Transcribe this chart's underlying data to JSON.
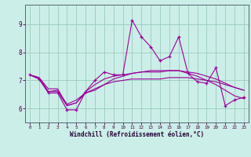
{
  "xlabel": "Windchill (Refroidissement éolien,°C)",
  "background_color": "#cceee8",
  "grid_color": "#99ccbb",
  "line_color": "#990099",
  "xlim": [
    -0.5,
    23.5
  ],
  "ylim": [
    5.5,
    9.7
  ],
  "yticks": [
    6,
    7,
    8,
    9
  ],
  "xticks": [
    0,
    1,
    2,
    3,
    4,
    5,
    6,
    7,
    8,
    9,
    10,
    11,
    12,
    13,
    14,
    15,
    16,
    17,
    18,
    19,
    20,
    21,
    22,
    23
  ],
  "series": [
    [
      7.2,
      7.05,
      6.55,
      6.55,
      5.95,
      5.95,
      6.6,
      7.0,
      7.3,
      7.2,
      7.2,
      9.15,
      8.55,
      8.2,
      7.7,
      7.85,
      8.55,
      7.25,
      6.95,
      6.9,
      7.45,
      6.1,
      6.3,
      6.4
    ],
    [
      7.2,
      7.05,
      6.6,
      6.65,
      6.15,
      6.3,
      6.55,
      6.65,
      6.85,
      7.05,
      7.15,
      7.25,
      7.3,
      7.35,
      7.35,
      7.35,
      7.35,
      7.25,
      7.15,
      7.0,
      6.85,
      6.65,
      6.45,
      6.35
    ],
    [
      7.2,
      7.1,
      6.6,
      6.6,
      6.1,
      6.2,
      6.6,
      6.85,
      7.05,
      7.15,
      7.2,
      7.25,
      7.3,
      7.3,
      7.3,
      7.35,
      7.35,
      7.3,
      7.25,
      7.15,
      7.05,
      6.9,
      6.75,
      6.65
    ],
    [
      7.2,
      7.1,
      6.7,
      6.7,
      6.1,
      6.2,
      6.55,
      6.7,
      6.85,
      6.95,
      7.0,
      7.05,
      7.05,
      7.05,
      7.05,
      7.1,
      7.1,
      7.1,
      7.05,
      7.0,
      6.95,
      6.85,
      6.75,
      6.65
    ]
  ],
  "figsize": [
    3.2,
    2.0
  ],
  "dpi": 100
}
